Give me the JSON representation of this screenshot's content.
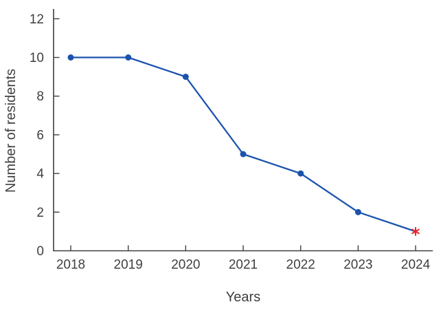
{
  "chart_data": {
    "type": "line",
    "title": "",
    "xlabel": "Years",
    "ylabel": "Number of residents",
    "x": [
      2018,
      2019,
      2020,
      2021,
      2022,
      2023,
      2024
    ],
    "values": [
      10,
      10,
      9,
      5,
      4,
      2,
      1
    ],
    "series": [
      {
        "name": "Number of residents",
        "values": [
          10,
          10,
          9,
          5,
          4,
          2,
          1
        ],
        "marker": "circle",
        "last_point_marker": "asterisk"
      }
    ],
    "ylim": [
      0,
      12
    ],
    "y_ticks": [
      0,
      2,
      4,
      6,
      8,
      10,
      12
    ],
    "grid": false,
    "legend": "none",
    "line_color": "#1b53ad",
    "marker_color": "#1b53ad",
    "last_marker_color": "#e8212b",
    "axis_color": "#3f3f3f",
    "text_color": "#3f3f3f",
    "background_color": "#ffffff"
  }
}
